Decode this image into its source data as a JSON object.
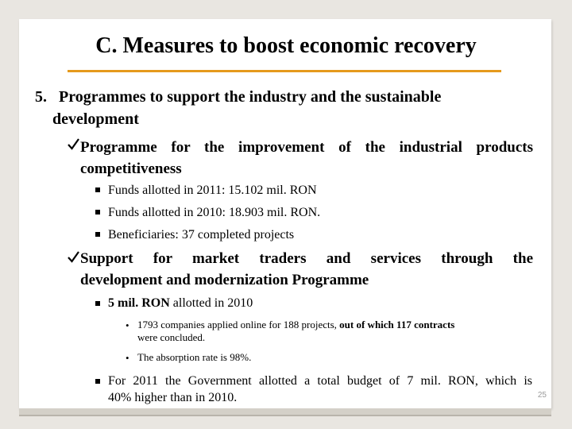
{
  "slide": {
    "title": "C. Measures to boost economic recovery",
    "section_number": "5.",
    "section_line1": "Programmes to support the industry and the sustainable",
    "section_line2": "development",
    "check_glyph": "ü",
    "p1_line1": "Programme for the improvement of the industrial products",
    "p1_line2": "competitiveness",
    "p1_b1": "Funds allotted in 2011: 15.102 mil. RON",
    "p1_b2": "Funds allotted in 2010: 18.903 mil. RON.",
    "p1_b3": "Beneficiaries: 37 completed projects",
    "p2_line1": "Support for market traders and services through the",
    "p2_line2": "development and modernization Programme",
    "p2_b1_bold": "5 mil. RON",
    "p2_b1_rest": " allotted in 2010",
    "p2_s1_a": "1793 companies applied online for 188 projects, ",
    "p2_s1_b": "out of which 117 contracts",
    "p2_s1_c": "were concluded.",
    "p2_s2": "The absorption rate is 98%.",
    "p2_b2_line1": "For 2011 the Government allotted a total budget of 7 mil. RON, which is",
    "p2_b2_line2": "40% higher than in 2010.",
    "page_number": "25"
  },
  "colors": {
    "accent_rule": "#e59a1c",
    "background": "#e9e6e1"
  }
}
